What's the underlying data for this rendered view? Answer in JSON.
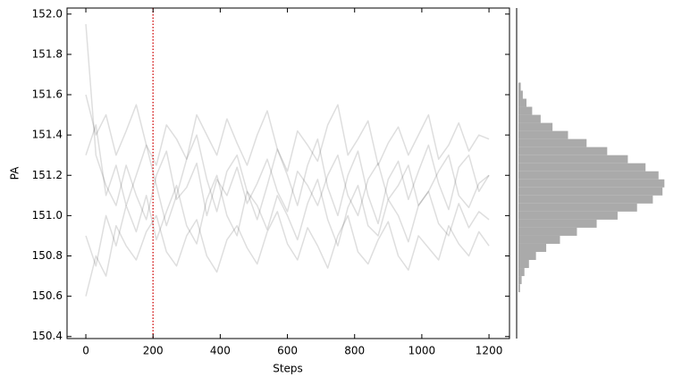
{
  "chart_data": [
    {
      "type": "line",
      "x_label": "Steps",
      "y_label": "PA",
      "x": [
        0,
        30,
        60,
        90,
        120,
        150,
        180,
        210,
        240,
        270,
        300,
        330,
        360,
        390,
        420,
        450,
        480,
        510,
        540,
        570,
        600,
        630,
        660,
        690,
        720,
        750,
        780,
        810,
        840,
        870,
        900,
        930,
        960,
        990,
        1020,
        1050,
        1080,
        1110,
        1140,
        1170,
        1200
      ],
      "series": [
        {
          "color": "#000000",
          "values": [
            151.3,
            151.45,
            151.1,
            151.25,
            151.05,
            151.2,
            151.35,
            151.15,
            150.95,
            151.1,
            151.28,
            151.4,
            151.18,
            151.02,
            151.22,
            151.3,
            151.12,
            150.98,
            151.15,
            151.33,
            151.2,
            151.05,
            151.25,
            151.38,
            151.14,
            151.0,
            151.2,
            151.32,
            151.1,
            150.96,
            151.18,
            151.27,
            151.08,
            151.22,
            151.35,
            151.16,
            151.03,
            151.24,
            151.3,
            151.12,
            151.2
          ]
        },
        {
          "color": "#000000",
          "values": [
            150.9,
            150.75,
            151.0,
            150.85,
            151.05,
            150.92,
            151.1,
            150.88,
            151.02,
            151.15,
            150.95,
            150.86,
            151.08,
            151.2,
            151.0,
            150.9,
            151.12,
            151.05,
            150.93,
            151.1,
            151.0,
            150.88,
            151.06,
            151.18,
            150.98,
            150.85,
            151.04,
            151.15,
            150.95,
            150.9,
            151.08,
            151.0,
            150.87,
            151.05,
            151.12,
            150.96,
            150.9,
            151.06,
            150.94,
            151.02,
            150.98
          ]
        },
        {
          "color": "#000000",
          "values": [
            151.6,
            151.4,
            151.5,
            151.3,
            151.42,
            151.55,
            151.35,
            151.25,
            151.45,
            151.38,
            151.28,
            151.5,
            151.4,
            151.3,
            151.48,
            151.36,
            151.25,
            151.4,
            151.52,
            151.33,
            151.22,
            151.42,
            151.35,
            151.27,
            151.45,
            151.55,
            151.3,
            151.38,
            151.47,
            151.25,
            151.36,
            151.44,
            151.3,
            151.4,
            151.5,
            151.28,
            151.35,
            151.46,
            151.32,
            151.4,
            151.38
          ]
        },
        {
          "color": "#000000",
          "values": [
            150.6,
            150.8,
            150.7,
            150.95,
            150.85,
            150.78,
            150.92,
            151.0,
            150.82,
            150.75,
            150.9,
            150.98,
            150.8,
            150.72,
            150.88,
            150.95,
            150.84,
            150.76,
            150.92,
            151.02,
            150.86,
            150.78,
            150.94,
            150.85,
            150.74,
            150.9,
            151.0,
            150.82,
            150.76,
            150.88,
            150.97,
            150.8,
            150.73,
            150.9,
            150.84,
            150.78,
            150.95,
            150.86,
            150.8,
            150.92,
            150.85
          ]
        },
        {
          "color": "#000000",
          "values": [
            151.95,
            151.3,
            151.15,
            151.05,
            151.25,
            151.1,
            150.98,
            151.2,
            151.32,
            151.08,
            151.14,
            151.26,
            151.0,
            151.18,
            151.1,
            151.24,
            151.06,
            151.16,
            151.28,
            151.12,
            151.02,
            151.22,
            151.15,
            151.05,
            151.2,
            151.3,
            151.1,
            151.0,
            151.18,
            151.26,
            151.08,
            151.15,
            151.25,
            151.05,
            151.12,
            151.22,
            151.3,
            151.1,
            151.04,
            151.16,
            151.2
          ]
        }
      ],
      "burn_in": 200,
      "burn_in_color": "#d62728",
      "xlim": [
        -56,
        1261
      ],
      "xticks": [
        0,
        200,
        400,
        600,
        800,
        1000,
        1200
      ],
      "ylim": [
        150.39,
        152.03
      ],
      "yticks": [
        150.4,
        150.6,
        150.8,
        {
          "value": 151,
          "label": "151.0"
        },
        151.2,
        151.4,
        151.6,
        151.8,
        {
          "value": 152,
          "label": "152.0"
        }
      ]
    },
    {
      "type": "histogram",
      "orientation": "horizontal",
      "color": "#aaaaaa",
      "bins": [
        150.62,
        150.66,
        150.7,
        150.74,
        150.78,
        150.82,
        150.86,
        150.9,
        150.94,
        150.98,
        151.02,
        151.06,
        151.1,
        151.14,
        151.18,
        151.22,
        151.26,
        151.3,
        151.34,
        151.38,
        151.42,
        151.46,
        151.5,
        151.54,
        151.58,
        151.62,
        151.66
      ],
      "counts": [
        11,
        22,
        41,
        72,
        120,
        190,
        284,
        400,
        535,
        678,
        811,
        919,
        985,
        998,
        958,
        869,
        748,
        607,
        466,
        339,
        233,
        152,
        94,
        55,
        30,
        16
      ],
      "xlim": [
        0,
        1100
      ],
      "ylim": [
        150.39,
        152.03
      ]
    }
  ]
}
